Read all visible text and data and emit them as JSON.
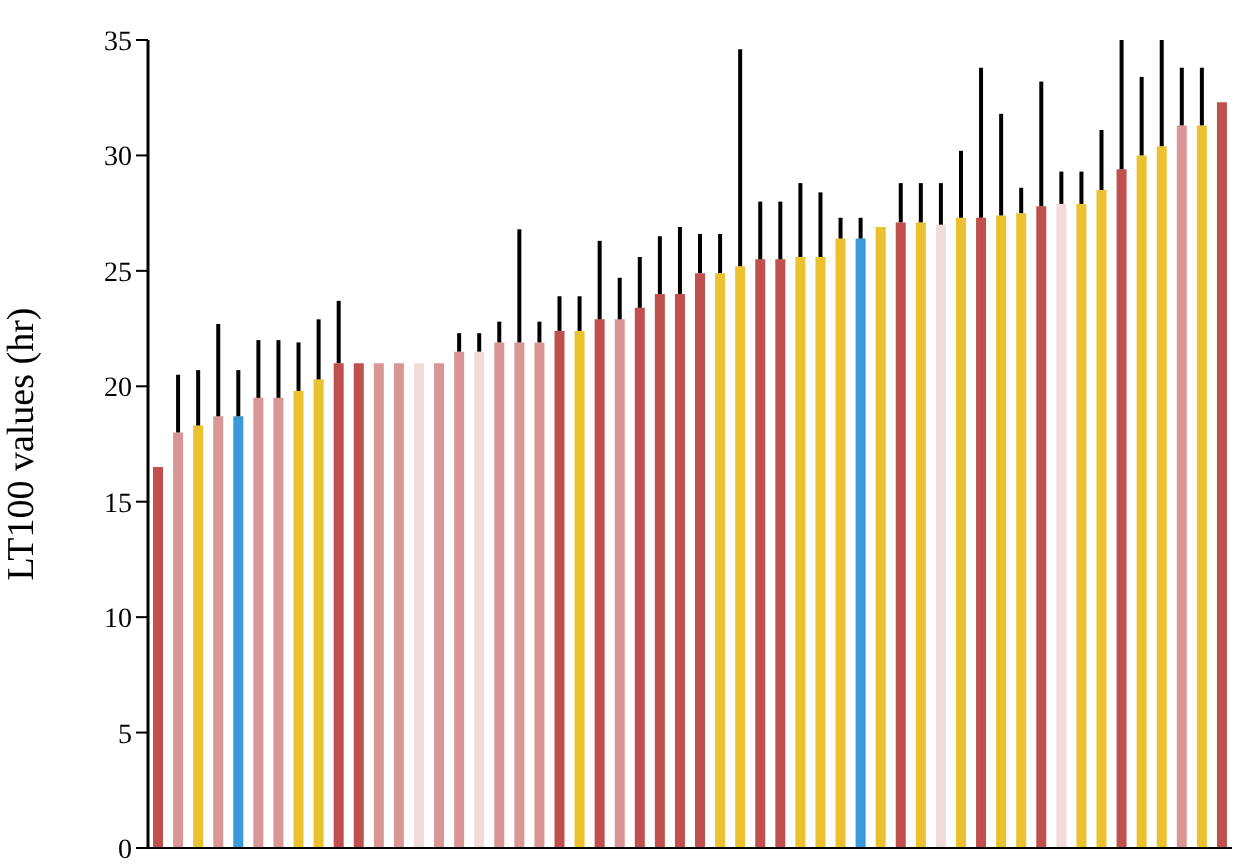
{
  "chart_data": {
    "type": "bar",
    "ylabel": "LT100 values (hr)",
    "categories": [
      null,
      null,
      null,
      null,
      null,
      null,
      null,
      null,
      null,
      null,
      null,
      null,
      null,
      null,
      null,
      null,
      null,
      null,
      null,
      null,
      null,
      null,
      null,
      null,
      null,
      null,
      null,
      null,
      null,
      null,
      null,
      null,
      null,
      null,
      null,
      null,
      null,
      null,
      null,
      null,
      null,
      null,
      null,
      null,
      null,
      null,
      null,
      null,
      null,
      null,
      null,
      null,
      null,
      null
    ],
    "values": [
      16.5,
      18.0,
      18.3,
      18.7,
      18.7,
      19.5,
      19.5,
      19.8,
      20.3,
      21.0,
      21.0,
      21.0,
      21.0,
      21.0,
      21.0,
      21.5,
      21.5,
      21.9,
      21.9,
      21.9,
      22.4,
      22.4,
      22.9,
      22.9,
      23.4,
      24.0,
      24.0,
      24.9,
      24.9,
      25.2,
      25.5,
      25.5,
      25.6,
      25.6,
      26.4,
      26.4,
      26.9,
      27.1,
      27.1,
      27.0,
      27.3,
      27.3,
      27.4,
      27.5,
      27.8,
      27.9,
      27.9,
      28.5,
      29.4,
      30.0,
      30.4,
      31.3,
      31.3,
      32.3
    ],
    "colors": [
      "#c0504d",
      "#d99694",
      "#ebc130",
      "#d99694",
      "#3a9ad9",
      "#d99694",
      "#d99694",
      "#ebc130",
      "#ebc130",
      "#c0504d",
      "#c0504d",
      "#d99694",
      "#d99694",
      "#f2dcdb",
      "#d99694",
      "#d99694",
      "#f2dcdb",
      "#d99694",
      "#d99694",
      "#d99694",
      "#c0504d",
      "#ebc130",
      "#c0504d",
      "#d99694",
      "#c0504d",
      "#c0504d",
      "#c0504d",
      "#c0504d",
      "#ebc130",
      "#ebc130",
      "#c0504d",
      "#c0504d",
      "#ebc130",
      "#ebc130",
      "#ebc130",
      "#3a9ad9",
      "#ebc130",
      "#c0504d",
      "#ebc130",
      "#f2dcdb",
      "#ebc130",
      "#c0504d",
      "#ebc130",
      "#ebc130",
      "#c0504d",
      "#f2dcdb",
      "#ebc130",
      "#ebc130",
      "#c0504d",
      "#ebc130",
      "#ebc130",
      "#d99694",
      "#ebc130",
      "#c0504d"
    ],
    "errors": [
      null,
      [
        18.0,
        20.5
      ],
      [
        18.3,
        20.7
      ],
      [
        18.7,
        22.7
      ],
      [
        18.7,
        20.7
      ],
      [
        19.5,
        22.0
      ],
      [
        19.5,
        22.0
      ],
      [
        19.8,
        21.9
      ],
      [
        20.3,
        22.9
      ],
      [
        21.0,
        23.7
      ],
      null,
      null,
      null,
      null,
      null,
      [
        21.5,
        22.3
      ],
      [
        21.5,
        22.3
      ],
      [
        21.9,
        22.8
      ],
      [
        21.9,
        26.8
      ],
      [
        21.9,
        22.8
      ],
      [
        22.4,
        23.9
      ],
      [
        22.4,
        23.9
      ],
      [
        22.9,
        26.3
      ],
      [
        22.9,
        24.7
      ],
      [
        23.4,
        25.6
      ],
      [
        24.0,
        26.5
      ],
      [
        24.0,
        26.9
      ],
      [
        24.9,
        26.6
      ],
      [
        24.9,
        26.6
      ],
      [
        25.2,
        34.6
      ],
      [
        25.5,
        28.0
      ],
      [
        25.5,
        28.0
      ],
      [
        25.6,
        28.8
      ],
      [
        25.6,
        28.4
      ],
      [
        26.4,
        27.3
      ],
      [
        26.4,
        27.3
      ],
      null,
      [
        27.1,
        28.8
      ],
      [
        27.1,
        28.8
      ],
      [
        27.0,
        28.8
      ],
      [
        27.3,
        30.2
      ],
      [
        27.3,
        33.8
      ],
      [
        27.4,
        31.8
      ],
      [
        27.5,
        28.6
      ],
      [
        27.8,
        33.2
      ],
      [
        27.9,
        29.3
      ],
      [
        27.9,
        29.3
      ],
      [
        28.5,
        31.1
      ],
      [
        29.4,
        35
      ],
      [
        30.0,
        33.4
      ],
      [
        30.4,
        35
      ],
      [
        31.3,
        33.8
      ],
      [
        31.3,
        33.8
      ],
      null
    ],
    "ylim": [
      0,
      35
    ],
    "yticks": [
      0,
      5,
      10,
      15,
      20,
      25,
      30,
      35
    ],
    "tick_labels": "y",
    "grid": false,
    "legend": false
  }
}
